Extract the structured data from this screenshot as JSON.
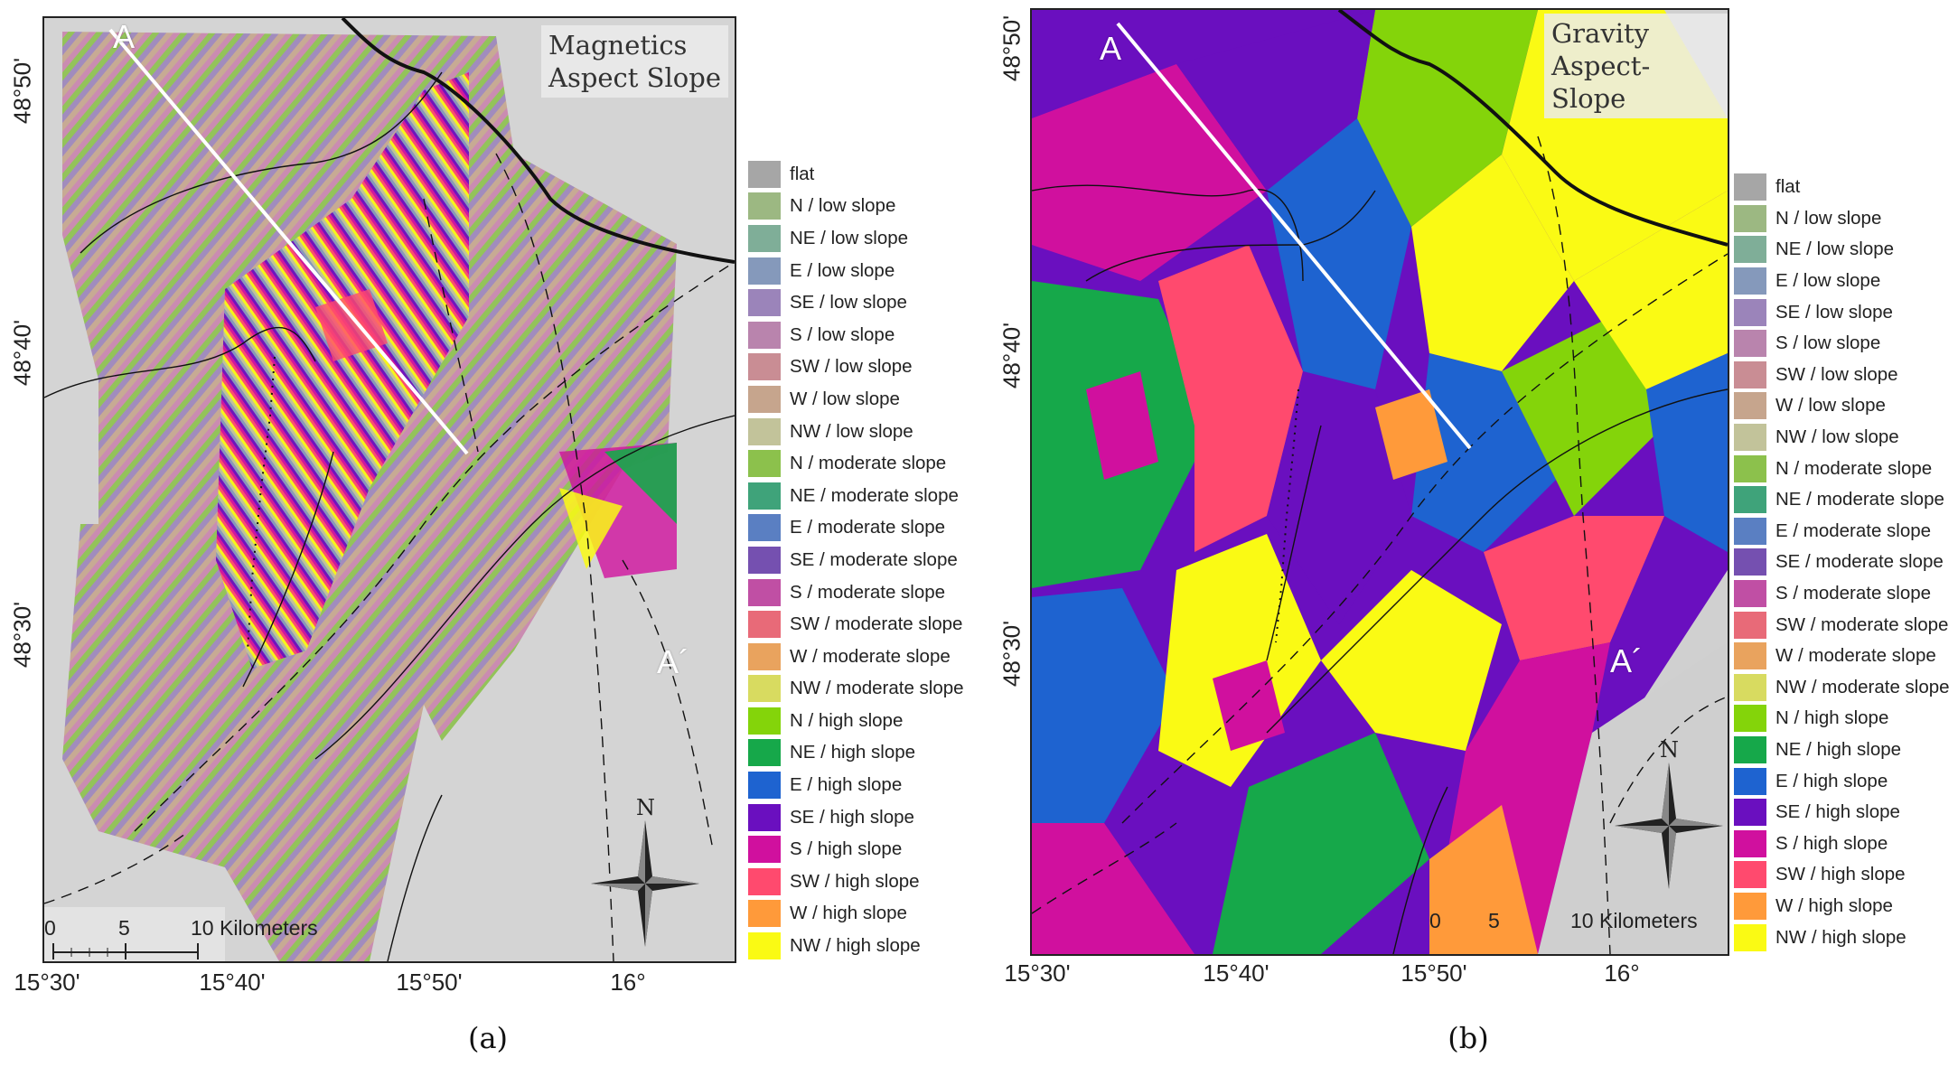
{
  "panels": [
    {
      "id": "a",
      "title_line1": "Magnetics",
      "title_line2": "Aspect Slope",
      "caption": "(a)",
      "profile_start": "A",
      "profile_end": "A´",
      "lat_labels": [
        "48°50'",
        "48°40'",
        "48°30'"
      ],
      "lon_labels": [
        "15°30'",
        "15°40'",
        "15°50'",
        "16°"
      ],
      "scale_labels": [
        "0",
        "5",
        "10 Kilometers"
      ],
      "north_label": "N"
    },
    {
      "id": "b",
      "title_line1": "Gravity",
      "title_line2": "Aspect-Slope",
      "caption": "(b)",
      "profile_start": "A",
      "profile_end": "A´",
      "lat_labels": [
        "48°50'",
        "48°40'",
        "48°30'"
      ],
      "lon_labels": [
        "15°30'",
        "15°40'",
        "15°50'",
        "16°"
      ],
      "scale_labels": [
        "0",
        "5",
        "10 Kilometers"
      ],
      "north_label": "N"
    }
  ],
  "legend": [
    {
      "label": "flat",
      "color": "#a6a6a6"
    },
    {
      "label": "N / low slope",
      "color": "#9cb882"
    },
    {
      "label": "NE / low slope",
      "color": "#7fae98"
    },
    {
      "label": "E / low slope",
      "color": "#8599bb"
    },
    {
      "label": "SE / low slope",
      "color": "#9b84ba"
    },
    {
      "label": "S / low slope",
      "color": "#b984ad"
    },
    {
      "label": "SW / low slope",
      "color": "#c98d94"
    },
    {
      "label": "W / low slope",
      "color": "#c6a58d"
    },
    {
      "label": "NW / low slope",
      "color": "#c2c39a"
    },
    {
      "label": "N / moderate slope",
      "color": "#8cc14c"
    },
    {
      "label": "NE / moderate slope",
      "color": "#3fa37a"
    },
    {
      "label": "E / moderate slope",
      "color": "#5a7fc2"
    },
    {
      "label": "SE / moderate slope",
      "color": "#7550b0"
    },
    {
      "label": "S / moderate slope",
      "color": "#c04fa4"
    },
    {
      "label": "SW / moderate slope",
      "color": "#e86a78"
    },
    {
      "label": "W / moderate slope",
      "color": "#e9a35e"
    },
    {
      "label": "NW / moderate slope",
      "color": "#d8db60"
    },
    {
      "label": "N / high slope",
      "color": "#84d40a"
    },
    {
      "label": "NE / high slope",
      "color": "#16a84a"
    },
    {
      "label": "E / high slope",
      "color": "#1e63d0"
    },
    {
      "label": "SE / high slope",
      "color": "#6a0fbf"
    },
    {
      "label": "S / high slope",
      "color": "#d0109e"
    },
    {
      "label": "SW / high slope",
      "color": "#ff4a6e"
    },
    {
      "label": "W / high slope",
      "color": "#ff9a3a"
    },
    {
      "label": "NW / high slope",
      "color": "#fafa14"
    }
  ]
}
